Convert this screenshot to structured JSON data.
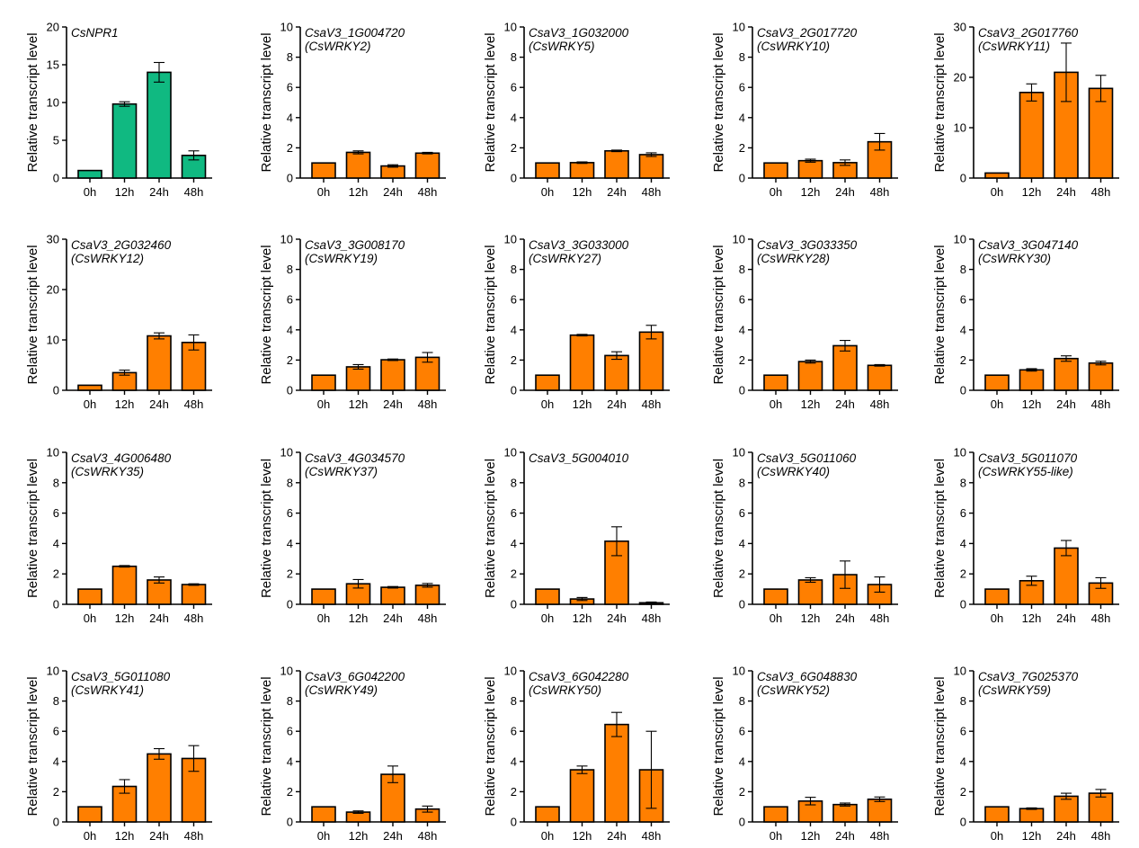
{
  "colors": {
    "highlight": "#10b981",
    "default": "#ff7f00"
  },
  "chart_data": [
    {
      "type": "bar",
      "title": "CsNPR1",
      "subtitle": "",
      "ylabel": "Relative transcript level",
      "categories": [
        "0h",
        "12h",
        "24h",
        "48h"
      ],
      "values": [
        1,
        9.8,
        14,
        3
      ],
      "errors": [
        0,
        0.3,
        1.3,
        0.6
      ],
      "ylim": [
        0,
        20
      ],
      "yticks": [
        0,
        5,
        10,
        15,
        20
      ],
      "color": "#10b981"
    },
    {
      "type": "bar",
      "title": "CsaV3_1G004720",
      "subtitle": "(CsWRKY2)",
      "ylabel": "Relative transcript level",
      "categories": [
        "0h",
        "12h",
        "24h",
        "48h"
      ],
      "values": [
        1,
        1.7,
        0.8,
        1.65
      ],
      "errors": [
        0,
        0.1,
        0.08,
        0.05
      ],
      "ylim": [
        0,
        10
      ],
      "yticks": [
        0,
        2,
        4,
        6,
        8,
        10
      ],
      "color": "#ff7f00"
    },
    {
      "type": "bar",
      "title": "CsaV3_1G032000",
      "subtitle": "(CsWRKY5)",
      "ylabel": "Relative transcript level",
      "categories": [
        "0h",
        "12h",
        "24h",
        "48h"
      ],
      "values": [
        1,
        1.02,
        1.8,
        1.55
      ],
      "errors": [
        0,
        0.05,
        0.05,
        0.12
      ],
      "ylim": [
        0,
        10
      ],
      "yticks": [
        0,
        2,
        4,
        6,
        8,
        10
      ],
      "color": "#ff7f00"
    },
    {
      "type": "bar",
      "title": "CsaV3_2G017720",
      "subtitle": "(CsWRKY10)",
      "ylabel": "Relative transcript level",
      "categories": [
        "0h",
        "12h",
        "24h",
        "48h"
      ],
      "values": [
        1,
        1.15,
        1.02,
        2.4
      ],
      "errors": [
        0,
        0.1,
        0.18,
        0.55
      ],
      "ylim": [
        0,
        10
      ],
      "yticks": [
        0,
        2,
        4,
        6,
        8,
        10
      ],
      "color": "#ff7f00"
    },
    {
      "type": "bar",
      "title": "CsaV3_2G017760",
      "subtitle": "(CsWRKY11)",
      "ylabel": "Relative transcript level",
      "categories": [
        "0h",
        "12h",
        "24h",
        "48h"
      ],
      "values": [
        1,
        17,
        21,
        17.8
      ],
      "errors": [
        0,
        1.7,
        5.8,
        2.6
      ],
      "ylim": [
        0,
        30
      ],
      "yticks": [
        0,
        10,
        20,
        30
      ],
      "color": "#ff7f00"
    },
    {
      "type": "bar",
      "title": "CsaV3_2G032460",
      "subtitle": "(CsWRKY12)",
      "ylabel": "Relative transcript level",
      "categories": [
        "0h",
        "12h",
        "24h",
        "48h"
      ],
      "values": [
        1,
        3.5,
        10.8,
        9.5
      ],
      "errors": [
        0,
        0.5,
        0.6,
        1.5
      ],
      "ylim": [
        0,
        30
      ],
      "yticks": [
        0,
        10,
        20,
        30
      ],
      "color": "#ff7f00"
    },
    {
      "type": "bar",
      "title": "CsaV3_3G008170",
      "subtitle": "(CsWRKY19)",
      "ylabel": "Relative transcript level",
      "categories": [
        "0h",
        "12h",
        "24h",
        "48h"
      ],
      "values": [
        1,
        1.55,
        2.02,
        2.18
      ],
      "errors": [
        0,
        0.15,
        0.05,
        0.32
      ],
      "ylim": [
        0,
        10
      ],
      "yticks": [
        0,
        2,
        4,
        6,
        8,
        10
      ],
      "color": "#ff7f00"
    },
    {
      "type": "bar",
      "title": "CsaV3_3G033000",
      "subtitle": "(CsWRKY27)",
      "ylabel": "Relative transcript level",
      "categories": [
        "0h",
        "12h",
        "24h",
        "48h"
      ],
      "values": [
        1,
        3.65,
        2.3,
        3.85
      ],
      "errors": [
        0,
        0.05,
        0.25,
        0.45
      ],
      "ylim": [
        0,
        10
      ],
      "yticks": [
        0,
        2,
        4,
        6,
        8,
        10
      ],
      "color": "#ff7f00"
    },
    {
      "type": "bar",
      "title": "CsaV3_3G033350",
      "subtitle": "(CsWRKY28)",
      "ylabel": "Relative transcript level",
      "categories": [
        "0h",
        "12h",
        "24h",
        "48h"
      ],
      "values": [
        1,
        1.9,
        2.95,
        1.65
      ],
      "errors": [
        0,
        0.1,
        0.35,
        0.05
      ],
      "ylim": [
        0,
        10
      ],
      "yticks": [
        0,
        2,
        4,
        6,
        8,
        10
      ],
      "color": "#ff7f00"
    },
    {
      "type": "bar",
      "title": "CsaV3_3G047140",
      "subtitle": "(CsWRKY30)",
      "ylabel": "Relative transcript level",
      "categories": [
        "0h",
        "12h",
        "24h",
        "48h"
      ],
      "values": [
        1,
        1.35,
        2.1,
        1.8
      ],
      "errors": [
        0,
        0.08,
        0.18,
        0.12
      ],
      "ylim": [
        0,
        10
      ],
      "yticks": [
        0,
        2,
        4,
        6,
        8,
        10
      ],
      "color": "#ff7f00"
    },
    {
      "type": "bar",
      "title": "CsaV3_4G006480",
      "subtitle": "(CsWRKY35)",
      "ylabel": "Relative transcript level",
      "categories": [
        "0h",
        "12h",
        "24h",
        "48h"
      ],
      "values": [
        1,
        2.5,
        1.6,
        1.3
      ],
      "errors": [
        0,
        0.05,
        0.2,
        0.05
      ],
      "ylim": [
        0,
        10
      ],
      "yticks": [
        0,
        2,
        4,
        6,
        8,
        10
      ],
      "color": "#ff7f00"
    },
    {
      "type": "bar",
      "title": "CsaV3_4G034570",
      "subtitle": "(CsWRKY37)",
      "ylabel": "Relative transcript level",
      "categories": [
        "0h",
        "12h",
        "24h",
        "48h"
      ],
      "values": [
        1,
        1.35,
        1.12,
        1.25
      ],
      "errors": [
        0,
        0.28,
        0.05,
        0.12
      ],
      "ylim": [
        0,
        10
      ],
      "yticks": [
        0,
        2,
        4,
        6,
        8,
        10
      ],
      "color": "#ff7f00"
    },
    {
      "type": "bar",
      "title": "CsaV3_5G004010",
      "subtitle": "",
      "ylabel": "Relative transcript level",
      "categories": [
        "0h",
        "12h",
        "24h",
        "48h"
      ],
      "values": [
        1,
        0.35,
        4.15,
        0.1
      ],
      "errors": [
        0,
        0.1,
        0.95,
        0.05
      ],
      "ylim": [
        0,
        10
      ],
      "yticks": [
        0,
        2,
        4,
        6,
        8,
        10
      ],
      "color": "#ff7f00"
    },
    {
      "type": "bar",
      "title": "CsaV3_5G011060",
      "subtitle": "(CsWRKY40)",
      "ylabel": "Relative transcript level",
      "categories": [
        "0h",
        "12h",
        "24h",
        "48h"
      ],
      "values": [
        1,
        1.6,
        1.95,
        1.3
      ],
      "errors": [
        0,
        0.15,
        0.9,
        0.5
      ],
      "ylim": [
        0,
        10
      ],
      "yticks": [
        0,
        2,
        4,
        6,
        8,
        10
      ],
      "color": "#ff7f00"
    },
    {
      "type": "bar",
      "title": "CsaV3_5G011070",
      "subtitle": "(CsWRKY55-like)",
      "ylabel": "Relative transcript level",
      "categories": [
        "0h",
        "12h",
        "24h",
        "48h"
      ],
      "values": [
        1,
        1.55,
        3.7,
        1.4
      ],
      "errors": [
        0,
        0.3,
        0.5,
        0.35
      ],
      "ylim": [
        0,
        10
      ],
      "yticks": [
        0,
        2,
        4,
        6,
        8,
        10
      ],
      "color": "#ff7f00"
    },
    {
      "type": "bar",
      "title": "CsaV3_5G011080",
      "subtitle": "(CsWRKY41)",
      "ylabel": "Relative transcript level",
      "categories": [
        "0h",
        "12h",
        "24h",
        "48h"
      ],
      "values": [
        1,
        2.35,
        4.5,
        4.2
      ],
      "errors": [
        0,
        0.45,
        0.35,
        0.85
      ],
      "ylim": [
        0,
        10
      ],
      "yticks": [
        0,
        2,
        4,
        6,
        8,
        10
      ],
      "color": "#ff7f00"
    },
    {
      "type": "bar",
      "title": "CsaV3_6G042200",
      "subtitle": "(CsWRKY49)",
      "ylabel": "Relative transcript level",
      "categories": [
        "0h",
        "12h",
        "24h",
        "48h"
      ],
      "values": [
        1,
        0.65,
        3.15,
        0.85
      ],
      "errors": [
        0,
        0.08,
        0.55,
        0.2
      ],
      "ylim": [
        0,
        10
      ],
      "yticks": [
        0,
        2,
        4,
        6,
        8,
        10
      ],
      "color": "#ff7f00"
    },
    {
      "type": "bar",
      "title": "CsaV3_6G042280",
      "subtitle": "(CsWRKY50)",
      "ylabel": "Relative transcript level",
      "categories": [
        "0h",
        "12h",
        "24h",
        "48h"
      ],
      "values": [
        1,
        3.45,
        6.45,
        3.45
      ],
      "errors": [
        0,
        0.25,
        0.8,
        2.55
      ],
      "ylim": [
        0,
        10
      ],
      "yticks": [
        0,
        2,
        4,
        6,
        8,
        10
      ],
      "color": "#ff7f00"
    },
    {
      "type": "bar",
      "title": "CsaV3_6G048830",
      "subtitle": "(CsWRKY52)",
      "ylabel": "Relative transcript level",
      "categories": [
        "0h",
        "12h",
        "24h",
        "48h"
      ],
      "values": [
        1,
        1.38,
        1.15,
        1.5
      ],
      "errors": [
        0,
        0.25,
        0.1,
        0.15
      ],
      "ylim": [
        0,
        10
      ],
      "yticks": [
        0,
        2,
        4,
        6,
        8,
        10
      ],
      "color": "#ff7f00"
    },
    {
      "type": "bar",
      "title": "CsaV3_7G025370",
      "subtitle": "(CsWRKY59)",
      "ylabel": "Relative transcript level",
      "categories": [
        "0h",
        "12h",
        "24h",
        "48h"
      ],
      "values": [
        1,
        0.88,
        1.7,
        1.9
      ],
      "errors": [
        0,
        0.05,
        0.2,
        0.25
      ],
      "ylim": [
        0,
        10
      ],
      "yticks": [
        0,
        2,
        4,
        6,
        8,
        10
      ],
      "color": "#ff7f00"
    }
  ]
}
